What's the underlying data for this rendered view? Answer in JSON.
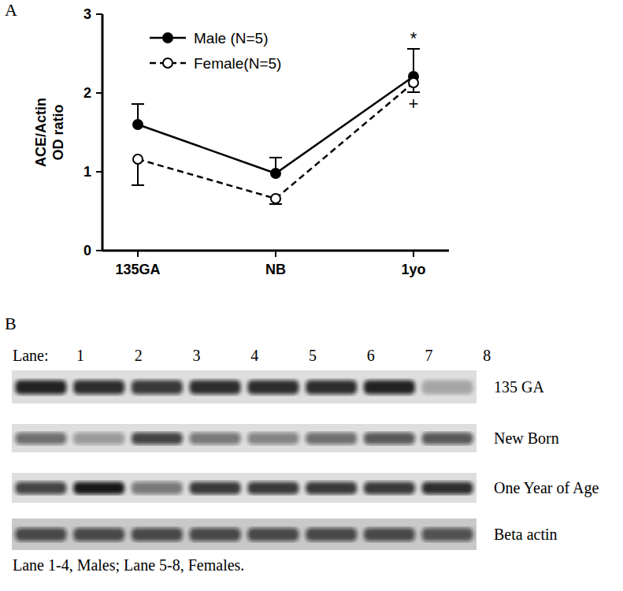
{
  "chart_data": {
    "type": "line",
    "panel": "A",
    "ylabel": [
      "ACE/Actin",
      "OD ratio"
    ],
    "categories": [
      "135GA",
      "NB",
      "1yo"
    ],
    "series": [
      {
        "name": "Male (N=5)",
        "color": "#000000",
        "marker": "filled",
        "line_style": "solid",
        "values": [
          1.6,
          0.98,
          2.21
        ],
        "errors": [
          0.26,
          0.2,
          0.35
        ]
      },
      {
        "name": "Female(N=5)",
        "color": "#000000",
        "marker": "open",
        "line_style": "dashed",
        "values": [
          1.16,
          0.66,
          2.13
        ],
        "errors": [
          0.33,
          0.07,
          0.12
        ]
      }
    ],
    "annotations": [
      {
        "text": "*",
        "series": 0,
        "category": 2
      },
      {
        "text": "+",
        "series": 1,
        "category": 2
      }
    ],
    "ylim": [
      0,
      3
    ],
    "yticks": [
      0,
      1,
      2,
      3
    ],
    "grid": false,
    "legend": "upper left"
  },
  "blot": {
    "panel": "B",
    "lane_title": "Lane:",
    "lanes": [
      1,
      2,
      3,
      4,
      5,
      6,
      7,
      8
    ],
    "rows": [
      {
        "label": "135 GA",
        "intensities": [
          0.9,
          0.85,
          0.8,
          0.85,
          0.85,
          0.85,
          0.9,
          0.25
        ]
      },
      {
        "label": "New Born",
        "intensities": [
          0.55,
          0.35,
          0.75,
          0.5,
          0.45,
          0.55,
          0.65,
          0.65
        ]
      },
      {
        "label": "One Year of Age",
        "intensities": [
          0.75,
          0.95,
          0.5,
          0.8,
          0.8,
          0.8,
          0.8,
          0.85
        ]
      },
      {
        "label": "Beta actin",
        "intensities": [
          0.7,
          0.7,
          0.7,
          0.7,
          0.7,
          0.7,
          0.7,
          0.65
        ]
      }
    ],
    "caption": "Lane 1-4, Males; Lane 5-8, Females."
  }
}
